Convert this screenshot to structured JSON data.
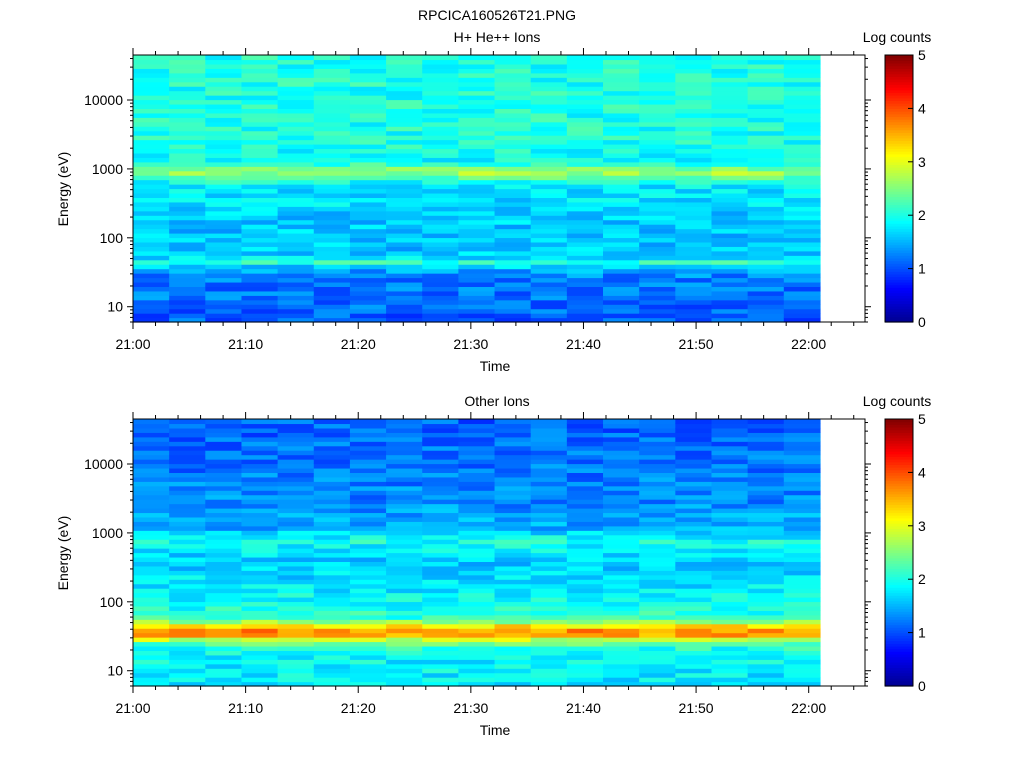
{
  "title": "RPCICA160526T21.PNG",
  "colors": {
    "colormap": [
      "#00008f",
      "#0000ff",
      "#0080ff",
      "#00ffff",
      "#80ff80",
      "#ffff00",
      "#ff8000",
      "#ff0000",
      "#800000"
    ]
  },
  "chart_data": [
    {
      "type": "heatmap",
      "title": "H+ He++ Ions",
      "xlabel": "Time",
      "ylabel": "Energy (eV)",
      "x_ticks": [
        "21:00",
        "21:10",
        "21:20",
        "21:30",
        "21:40",
        "21:50",
        "22:00"
      ],
      "x_range_minutes": [
        0,
        65
      ],
      "data_end_minutes": 61,
      "y_scale": "log",
      "y_ticks": [
        "10",
        "100",
        "1000",
        "10000"
      ],
      "y_range": [
        6,
        45000
      ],
      "colorbar_label": "Log counts",
      "colorbar_ticks": [
        "0",
        "1",
        "2",
        "3",
        "4",
        "5"
      ],
      "c_range": [
        0,
        5
      ],
      "columns": 19,
      "profile": [
        {
          "e": 8,
          "v": 1.1
        },
        {
          "e": 13,
          "v": 1.2
        },
        {
          "e": 20,
          "v": 1.2
        },
        {
          "e": 30,
          "v": 1.3
        },
        {
          "e": 38,
          "v": 1.6
        },
        {
          "e": 45,
          "v": 2.1
        },
        {
          "e": 55,
          "v": 1.6
        },
        {
          "e": 80,
          "v": 1.6
        },
        {
          "e": 150,
          "v": 1.6
        },
        {
          "e": 300,
          "v": 1.7
        },
        {
          "e": 600,
          "v": 1.8
        },
        {
          "e": 900,
          "v": 2.7
        },
        {
          "e": 1300,
          "v": 1.9
        },
        {
          "e": 3000,
          "v": 2.0
        },
        {
          "e": 10000,
          "v": 2.0
        },
        {
          "e": 45000,
          "v": 2.0
        }
      ]
    },
    {
      "type": "heatmap",
      "title": "Other Ions",
      "xlabel": "Time",
      "ylabel": "Energy (eV)",
      "x_ticks": [
        "21:00",
        "21:10",
        "21:20",
        "21:30",
        "21:40",
        "21:50",
        "22:00"
      ],
      "x_range_minutes": [
        0,
        65
      ],
      "data_end_minutes": 61,
      "y_scale": "log",
      "y_ticks": [
        "10",
        "100",
        "1000",
        "10000"
      ],
      "y_range": [
        6,
        45000
      ],
      "colorbar_label": "Log counts",
      "colorbar_ticks": [
        "0",
        "1",
        "2",
        "3",
        "4",
        "5"
      ],
      "c_range": [
        0,
        5
      ],
      "columns": 19,
      "profile": [
        {
          "e": 8,
          "v": 1.8
        },
        {
          "e": 20,
          "v": 1.9
        },
        {
          "e": 27,
          "v": 2.5
        },
        {
          "e": 33,
          "v": 3.6
        },
        {
          "e": 40,
          "v": 3.7
        },
        {
          "e": 48,
          "v": 2.9
        },
        {
          "e": 60,
          "v": 2.1
        },
        {
          "e": 150,
          "v": 1.8
        },
        {
          "e": 400,
          "v": 1.6
        },
        {
          "e": 800,
          "v": 2.0
        },
        {
          "e": 1100,
          "v": 1.5
        },
        {
          "e": 3000,
          "v": 1.3
        },
        {
          "e": 10000,
          "v": 1.2
        },
        {
          "e": 45000,
          "v": 1.1
        }
      ]
    }
  ]
}
